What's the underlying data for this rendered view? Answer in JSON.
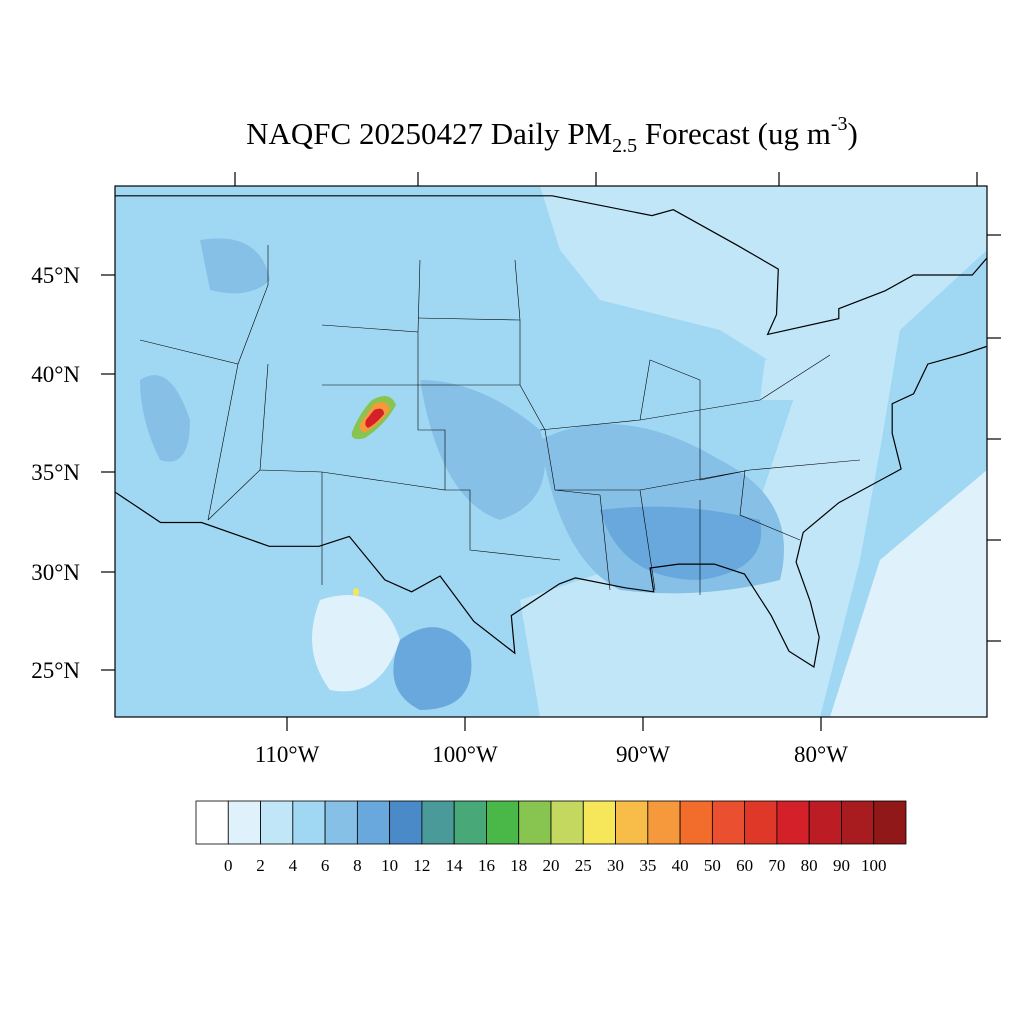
{
  "header": {
    "title_main": "NAQFC 20250427 Daily PM",
    "title_sub": "2.5",
    "title_mid": " Forecast (ug m",
    "title_sup": "-3",
    "title_end": ")"
  },
  "axes": {
    "lat_labels": [
      "45°N",
      "40°N",
      "35°N",
      "30°N",
      "25°N"
    ],
    "lon_labels": [
      "110°W",
      "100°W",
      "90°W",
      "80°W"
    ]
  },
  "colorbar": {
    "colors": [
      "#ffffff",
      "#dff2fb",
      "#c0e6f8",
      "#a0d8f4",
      "#86c0e6",
      "#68a8dc",
      "#4a8ac8",
      "#4a9a9a",
      "#48a878",
      "#4ab848",
      "#88c450",
      "#c4d860",
      "#f6e65a",
      "#f8bc48",
      "#f6983c",
      "#f26c2c",
      "#ea5030",
      "#e03828",
      "#d42028",
      "#bc1c24",
      "#a81c20",
      "#901818"
    ],
    "labels": [
      "0",
      "2",
      "4",
      "6",
      "8",
      "10",
      "12",
      "14",
      "16",
      "18",
      "20",
      "25",
      "30",
      "35",
      "40",
      "50",
      "60",
      "70",
      "80",
      "90",
      "100"
    ]
  }
}
